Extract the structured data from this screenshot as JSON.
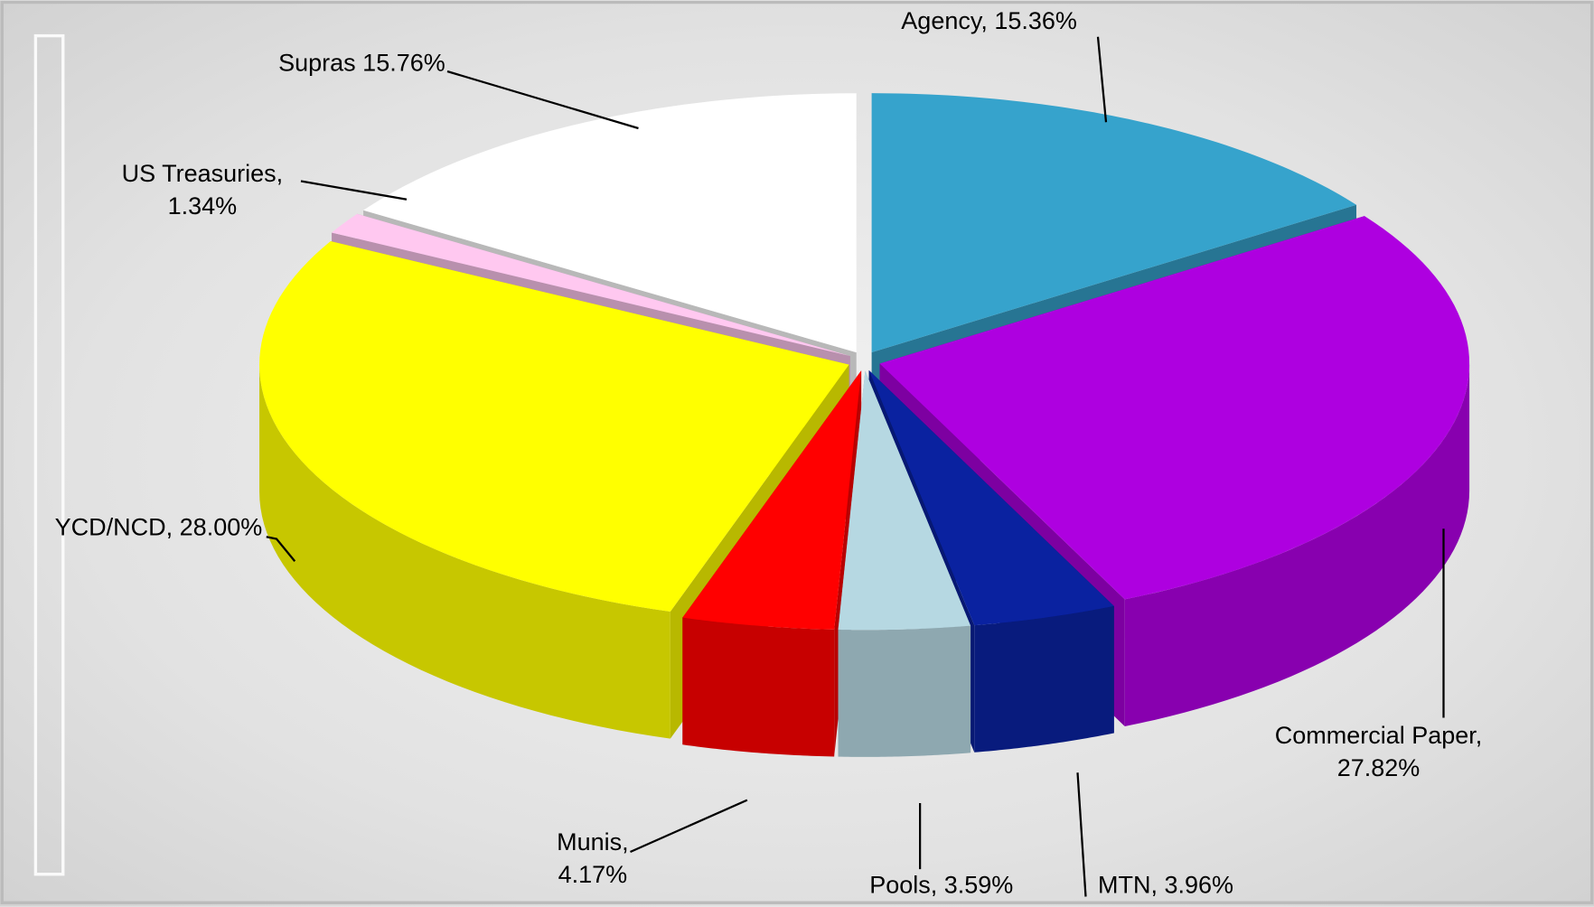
{
  "chart_data": {
    "type": "pie3d",
    "values": [
      15.36,
      27.82,
      3.96,
      3.59,
      4.17,
      28.0,
      1.34,
      15.76
    ],
    "value_labels": [
      [
        "Agency, 15.36%"
      ],
      [
        "Commercial Paper,",
        "27.82%"
      ],
      [
        "MTN, 3.96%"
      ],
      [
        "Pools, 3.59%"
      ],
      [
        "Munis,",
        "4.17%"
      ],
      [
        "YCD/NCD, 28.00%"
      ],
      [
        "US Treasuries,",
        "1.34%"
      ],
      [
        "Supras 15.76%"
      ]
    ],
    "colors": [
      "#36a3cc",
      "#ae00e0",
      "#0a22a0",
      "#b6d8e2",
      "#ff0000",
      "#ffff00",
      "#ffc8f0",
      "#ffffff"
    ]
  }
}
